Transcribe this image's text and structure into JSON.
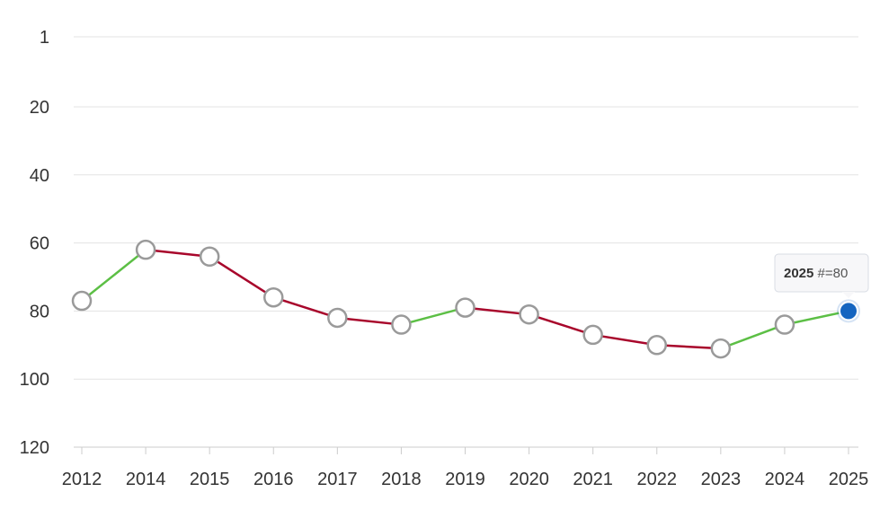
{
  "chart_data": {
    "type": "line",
    "x": [
      "2012",
      "2014",
      "2015",
      "2016",
      "2017",
      "2018",
      "2019",
      "2020",
      "2021",
      "2022",
      "2023",
      "2024",
      "2025"
    ],
    "series": [
      {
        "values": [
          77,
          62,
          64,
          76,
          82,
          84,
          79,
          81,
          87,
          90,
          91,
          84,
          80
        ]
      }
    ],
    "yticks": [
      1,
      20,
      40,
      60,
      80,
      100,
      120
    ],
    "ylim": [
      1,
      120
    ],
    "y_inverted": true,
    "grid": true,
    "title": "",
    "xlabel": "",
    "ylabel": "",
    "colors": {
      "improve": "#5cbf45",
      "decline": "#a8062b",
      "highlight": "#1565c0",
      "marker_stroke": "#9a9a9a"
    },
    "tooltip": {
      "year": "2025",
      "value_text": "#=80"
    }
  }
}
